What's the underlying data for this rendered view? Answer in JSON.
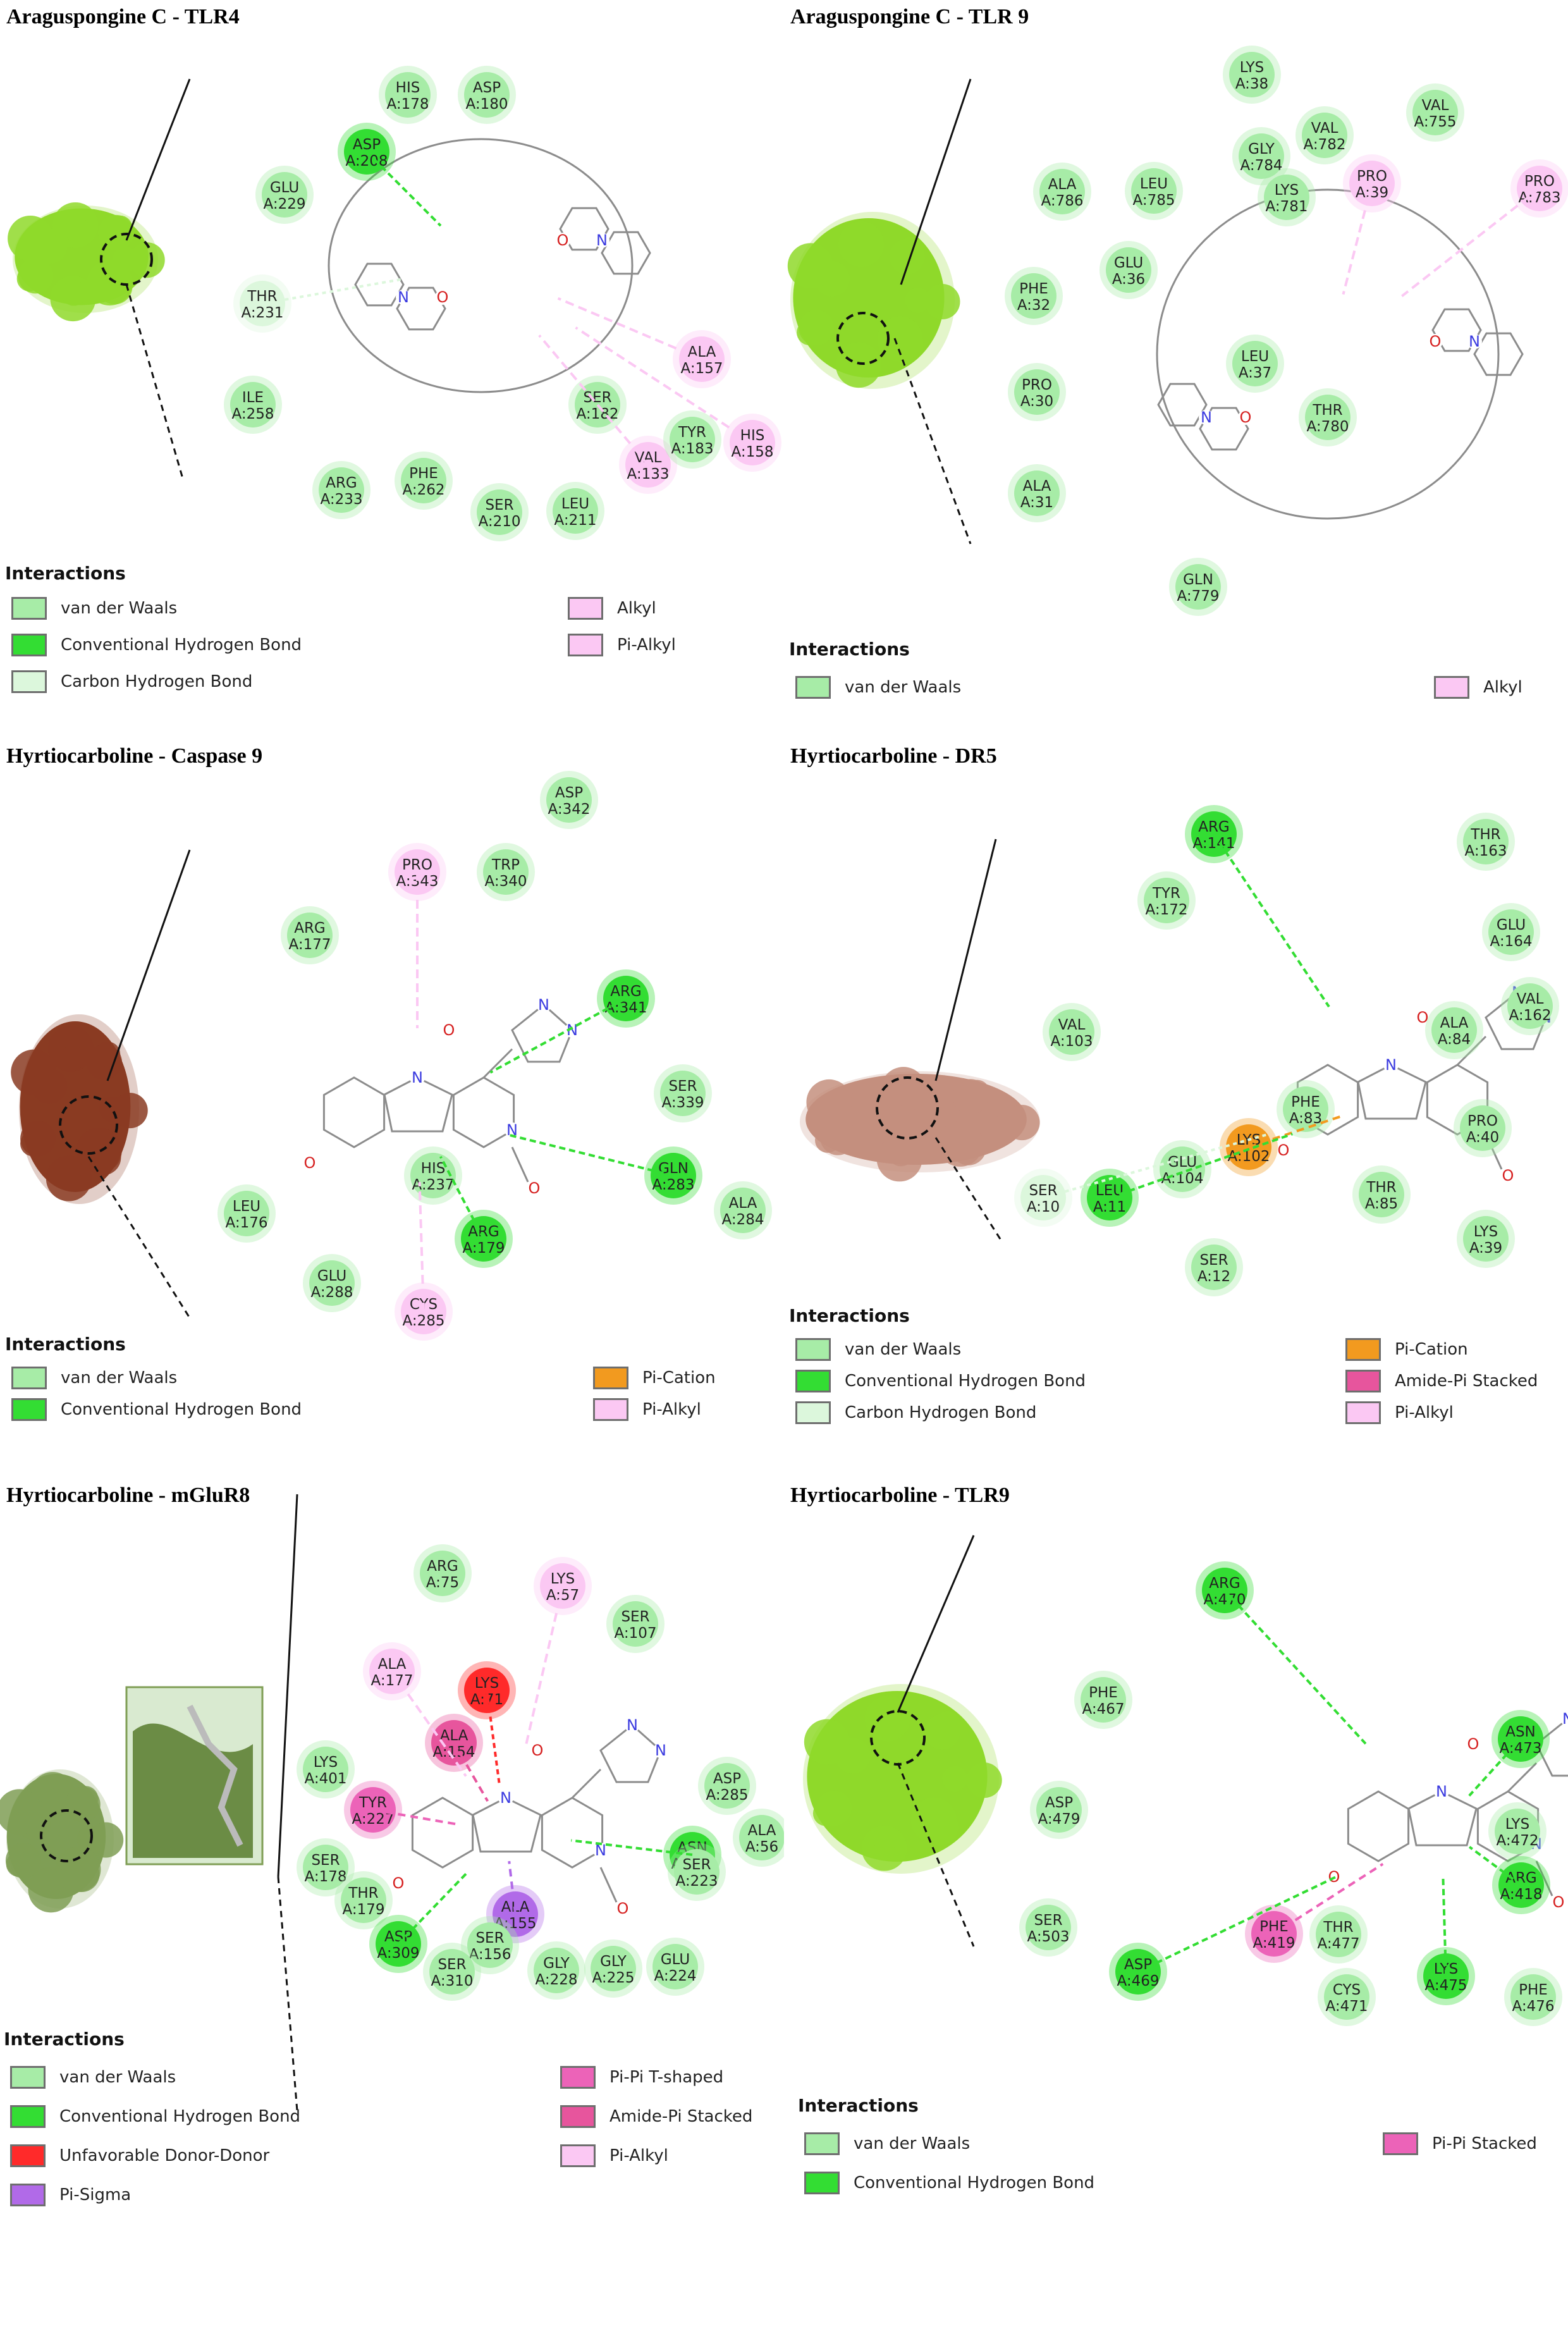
{
  "colors": {
    "vdw": "#a7eca7",
    "hbond": "#33dd33",
    "chbond": "#dcf7dc",
    "alkyl": "#fbc8f3",
    "pication": "#f29a1f",
    "amidepi": "#e7559d",
    "pipi": "#ec63b8",
    "unfav": "#ff2a2a",
    "pisigma": "#b16ae8",
    "bond": "#8c8c8c",
    "hetero": "#3b3be0",
    "oxygen": "#d62020"
  },
  "panels": [
    {
      "title": "Araguspongine C - TLR4",
      "surface": "#8fd92a",
      "legend": {
        "heading": "Interactions",
        "items": [
          {
            "label": "van der Waals",
            "color": "#a7eca7"
          },
          {
            "label": "Conventional Hydrogen Bond",
            "color": "#33dd33"
          },
          {
            "label": "Carbon Hydrogen Bond",
            "color": "#dcf7dc"
          },
          {
            "label": "Alkyl",
            "color": "#fbc8f3"
          },
          {
            "label": "Pi-Alkyl",
            "color": "#fbc8f3"
          }
        ]
      },
      "residues": [
        {
          "name": "HIS",
          "id": "A:178",
          "type": "vdw"
        },
        {
          "name": "ASP",
          "id": "A:180",
          "type": "vdw"
        },
        {
          "name": "ASP",
          "id": "A:208",
          "type": "hbond"
        },
        {
          "name": "GLU",
          "id": "A:229",
          "type": "vdw"
        },
        {
          "name": "THR",
          "id": "A:231",
          "type": "chbond"
        },
        {
          "name": "ILE",
          "id": "A:258",
          "type": "vdw"
        },
        {
          "name": "ARG",
          "id": "A:233",
          "type": "vdw"
        },
        {
          "name": "PHE",
          "id": "A:262",
          "type": "vdw"
        },
        {
          "name": "SER",
          "id": "A:210",
          "type": "vdw"
        },
        {
          "name": "LEU",
          "id": "A:211",
          "type": "vdw"
        },
        {
          "name": "SER",
          "id": "A:182",
          "type": "vdw"
        },
        {
          "name": "VAL",
          "id": "A:133",
          "type": "alkyl"
        },
        {
          "name": "TYR",
          "id": "A:183",
          "type": "vdw"
        },
        {
          "name": "ALA",
          "id": "A:157",
          "type": "alkyl"
        },
        {
          "name": "HIS",
          "id": "A:158",
          "type": "alkyl"
        }
      ]
    },
    {
      "title": "Araguspongine C - TLR 9",
      "surface": "#8fd92a",
      "legend": {
        "heading": "Interactions",
        "items": [
          {
            "label": "van der Waals",
            "color": "#a7eca7"
          },
          {
            "label": "Alkyl",
            "color": "#fbc8f3"
          }
        ]
      },
      "residues": [
        {
          "name": "LYS",
          "id": "A:38",
          "type": "vdw"
        },
        {
          "name": "VAL",
          "id": "A:755",
          "type": "vdw"
        },
        {
          "name": "VAL",
          "id": "A:782",
          "type": "vdw"
        },
        {
          "name": "GLY",
          "id": "A:784",
          "type": "vdw"
        },
        {
          "name": "ALA",
          "id": "A:786",
          "type": "vdw"
        },
        {
          "name": "LEU",
          "id": "A:785",
          "type": "vdw"
        },
        {
          "name": "LYS",
          "id": "A:781",
          "type": "vdw"
        },
        {
          "name": "PRO",
          "id": "A:39",
          "type": "alkyl"
        },
        {
          "name": "PRO",
          "id": "A:783",
          "type": "alkyl"
        },
        {
          "name": "PHE",
          "id": "A:32",
          "type": "vdw"
        },
        {
          "name": "GLU",
          "id": "A:36",
          "type": "vdw"
        },
        {
          "name": "LEU",
          "id": "A:37",
          "type": "vdw"
        },
        {
          "name": "THR",
          "id": "A:780",
          "type": "vdw"
        },
        {
          "name": "PRO",
          "id": "A:30",
          "type": "vdw"
        },
        {
          "name": "ALA",
          "id": "A:31",
          "type": "vdw"
        },
        {
          "name": "GLN",
          "id": "A:779",
          "type": "vdw"
        }
      ]
    },
    {
      "title": "Hyrtiocarboline - Caspase 9",
      "surface": "#8a3b22",
      "legend": {
        "heading": "Interactions",
        "items": [
          {
            "label": "van der Waals",
            "color": "#a7eca7"
          },
          {
            "label": "Conventional Hydrogen Bond",
            "color": "#33dd33"
          },
          {
            "label": "Pi-Cation",
            "color": "#f29a1f"
          },
          {
            "label": "Pi-Alkyl",
            "color": "#fbc8f3"
          }
        ]
      },
      "residues": [
        {
          "name": "ASP",
          "id": "A:342",
          "type": "vdw"
        },
        {
          "name": "PRO",
          "id": "A:343",
          "type": "alkyl"
        },
        {
          "name": "TRP",
          "id": "A:340",
          "type": "vdw"
        },
        {
          "name": "ARG",
          "id": "A:177",
          "type": "vdw"
        },
        {
          "name": "ARG",
          "id": "A:341",
          "type": "hbond"
        },
        {
          "name": "SER",
          "id": "A:339",
          "type": "vdw"
        },
        {
          "name": "HIS",
          "id": "A:237",
          "type": "vdw"
        },
        {
          "name": "GLN",
          "id": "A:283",
          "type": "hbond"
        },
        {
          "name": "ALA",
          "id": "A:284",
          "type": "vdw"
        },
        {
          "name": "LEU",
          "id": "A:176",
          "type": "vdw"
        },
        {
          "name": "ARG",
          "id": "A:179",
          "type": "hbond"
        },
        {
          "name": "GLU",
          "id": "A:288",
          "type": "vdw"
        },
        {
          "name": "CYS",
          "id": "A:285",
          "type": "alkyl"
        }
      ]
    },
    {
      "title": "Hyrtiocarboline - DR5",
      "surface": "#c48f7e",
      "legend": {
        "heading": "Interactions",
        "items": [
          {
            "label": "van der Waals",
            "color": "#a7eca7"
          },
          {
            "label": "Conventional Hydrogen Bond",
            "color": "#33dd33"
          },
          {
            "label": "Carbon Hydrogen Bond",
            "color": "#dcf7dc"
          },
          {
            "label": "Pi-Cation",
            "color": "#f29a1f"
          },
          {
            "label": "Amide-Pi Stacked",
            "color": "#e7559d"
          },
          {
            "label": "Pi-Alkyl",
            "color": "#fbc8f3"
          }
        ]
      },
      "residues": [
        {
          "name": "ARG",
          "id": "A:141",
          "type": "hbond"
        },
        {
          "name": "THR",
          "id": "A:163",
          "type": "vdw"
        },
        {
          "name": "TYR",
          "id": "A:172",
          "type": "vdw"
        },
        {
          "name": "GLU",
          "id": "A:164",
          "type": "vdw"
        },
        {
          "name": "ALA",
          "id": "A:84",
          "type": "vdw"
        },
        {
          "name": "VAL",
          "id": "A:162",
          "type": "vdw"
        },
        {
          "name": "VAL",
          "id": "A:103",
          "type": "vdw"
        },
        {
          "name": "PHE",
          "id": "A:83",
          "type": "vdw"
        },
        {
          "name": "PRO",
          "id": "A:40",
          "type": "vdw"
        },
        {
          "name": "LYS",
          "id": "A:102",
          "type": "pication"
        },
        {
          "name": "GLU",
          "id": "A:104",
          "type": "vdw"
        },
        {
          "name": "SER",
          "id": "A:10",
          "type": "chbond"
        },
        {
          "name": "LEU",
          "id": "A:11",
          "type": "hbond"
        },
        {
          "name": "THR",
          "id": "A:85",
          "type": "vdw"
        },
        {
          "name": "LYS",
          "id": "A:39",
          "type": "vdw"
        },
        {
          "name": "SER",
          "id": "A:12",
          "type": "vdw"
        }
      ]
    },
    {
      "title": "Hyrtiocarboline - mGluR8",
      "surface": "#7f9e55",
      "legend": {
        "heading": "Interactions",
        "items": [
          {
            "label": "van der Waals",
            "color": "#a7eca7"
          },
          {
            "label": "Conventional Hydrogen Bond",
            "color": "#33dd33"
          },
          {
            "label": "Unfavorable Donor-Donor",
            "color": "#ff2a2a"
          },
          {
            "label": "Pi-Sigma",
            "color": "#b16ae8"
          },
          {
            "label": "Pi-Pi T-shaped",
            "color": "#ec63b8"
          },
          {
            "label": "Amide-Pi Stacked",
            "color": "#e7559d"
          },
          {
            "label": "Pi-Alkyl",
            "color": "#fbc8f3"
          }
        ]
      },
      "residues": [
        {
          "name": "ARG",
          "id": "A:75",
          "type": "vdw"
        },
        {
          "name": "LYS",
          "id": "A:57",
          "type": "alkyl"
        },
        {
          "name": "SER",
          "id": "A:107",
          "type": "vdw"
        },
        {
          "name": "ALA",
          "id": "A:177",
          "type": "alkyl"
        },
        {
          "name": "LYS",
          "id": "A:71",
          "type": "unfav"
        },
        {
          "name": "ALA",
          "id": "A:154",
          "type": "amidepi"
        },
        {
          "name": "LYS",
          "id": "A:401",
          "type": "vdw"
        },
        {
          "name": "ASP",
          "id": "A:285",
          "type": "vdw"
        },
        {
          "name": "TYR",
          "id": "A:227",
          "type": "pipi"
        },
        {
          "name": "ALA",
          "id": "A:56",
          "type": "vdw"
        },
        {
          "name": "ASN",
          "id": "A:283",
          "type": "hbond"
        },
        {
          "name": "SER",
          "id": "A:178",
          "type": "vdw"
        },
        {
          "name": "THR",
          "id": "A:179",
          "type": "vdw"
        },
        {
          "name": "ALA",
          "id": "A:155",
          "type": "pisigma"
        },
        {
          "name": "SER",
          "id": "A:223",
          "type": "vdw"
        },
        {
          "name": "ASP",
          "id": "A:309",
          "type": "hbond"
        },
        {
          "name": "SER",
          "id": "A:156",
          "type": "vdw"
        },
        {
          "name": "SER",
          "id": "A:310",
          "type": "vdw"
        },
        {
          "name": "GLY",
          "id": "A:228",
          "type": "vdw"
        },
        {
          "name": "GLY",
          "id": "A:225",
          "type": "vdw"
        },
        {
          "name": "GLU",
          "id": "A:224",
          "type": "vdw"
        }
      ]
    },
    {
      "title": "Hyrtiocarboline - TLR9",
      "surface": "#8fd92a",
      "legend": {
        "heading": "Interactions",
        "items": [
          {
            "label": "van der Waals",
            "color": "#a7eca7"
          },
          {
            "label": "Conventional Hydrogen Bond",
            "color": "#33dd33"
          },
          {
            "label": "Pi-Pi Stacked",
            "color": "#ec63b8"
          }
        ]
      },
      "residues": [
        {
          "name": "ARG",
          "id": "A:470",
          "type": "hbond"
        },
        {
          "name": "PHE",
          "id": "A:467",
          "type": "vdw"
        },
        {
          "name": "ASN",
          "id": "A:473",
          "type": "hbond"
        },
        {
          "name": "LYS",
          "id": "A:472",
          "type": "vdw"
        },
        {
          "name": "ASP",
          "id": "A:479",
          "type": "vdw"
        },
        {
          "name": "ARG",
          "id": "A:418",
          "type": "hbond"
        },
        {
          "name": "SER",
          "id": "A:503",
          "type": "vdw"
        },
        {
          "name": "PHE",
          "id": "A:419",
          "type": "pipi"
        },
        {
          "name": "THR",
          "id": "A:477",
          "type": "vdw"
        },
        {
          "name": "ASP",
          "id": "A:469",
          "type": "hbond"
        },
        {
          "name": "CYS",
          "id": "A:471",
          "type": "vdw"
        },
        {
          "name": "LYS",
          "id": "A:475",
          "type": "hbond"
        },
        {
          "name": "PHE",
          "id": "A:476",
          "type": "vdw"
        }
      ]
    }
  ]
}
